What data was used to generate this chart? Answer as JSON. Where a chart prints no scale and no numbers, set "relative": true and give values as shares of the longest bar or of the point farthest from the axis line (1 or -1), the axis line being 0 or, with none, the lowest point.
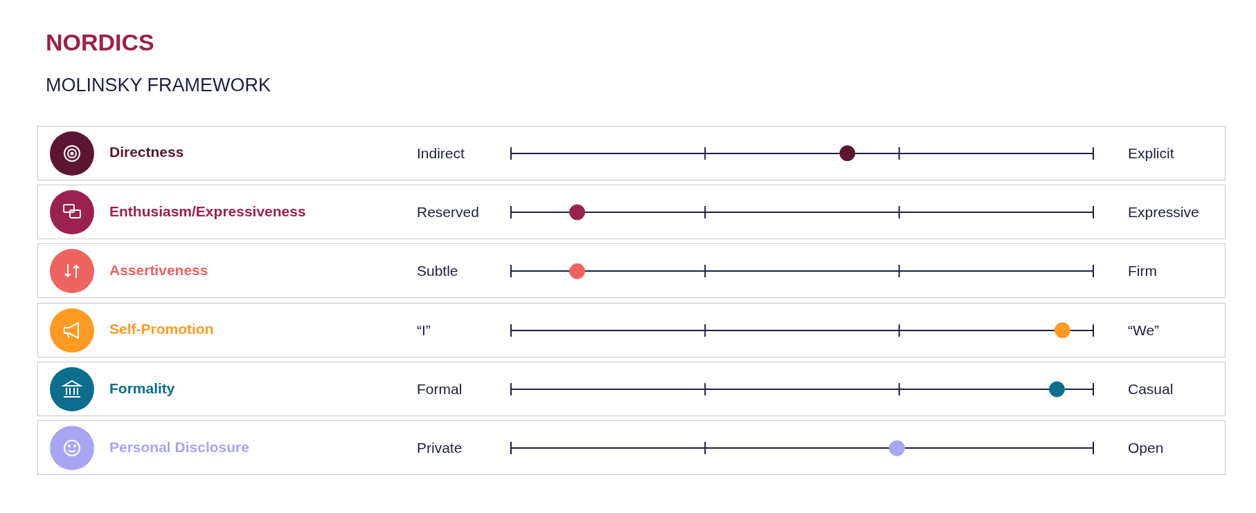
{
  "chart_data": {
    "type": "scatter",
    "orientation": "horizontal",
    "relative": true,
    "title": "NORDICS",
    "subtitle": "MOLINSKY FRAMEWORK",
    "categories": [
      "Directness",
      "Enthusiasm/Expressiveness",
      "Assertiveness",
      "Self-Promotion",
      "Formality",
      "Personal Disclosure"
    ],
    "values": [
      0.61,
      0.12,
      0.12,
      1,
      0.99,
      0.7
    ],
    "colors": [
      "#5c1634",
      "#9b2150",
      "#ee6360",
      "#ff9a22",
      "#0b6e8f",
      "#a8a5f2"
    ],
    "marker": "circle",
    "grid": "y",
    "annotations": [
      "Indirect",
      "Explicit",
      "Reserved",
      "Expressive",
      "Subtle",
      "Firm",
      "“I”",
      "“We”",
      "Formal",
      "Casual",
      "Private",
      "Open"
    ]
  }
}
